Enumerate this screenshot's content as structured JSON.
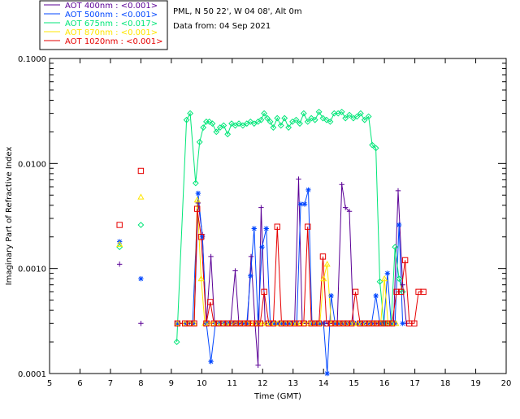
{
  "chart_data": {
    "type": "line",
    "yscale": "log",
    "ylabel": "Imaginary Part of Refractive Index",
    "xlabel": "Time (GMT)",
    "xlim": [
      5,
      20
    ],
    "ylim": [
      0.0001,
      0.1
    ],
    "x_ticks": [
      5,
      6,
      7,
      8,
      9,
      10,
      11,
      12,
      13,
      14,
      15,
      16,
      17,
      18,
      19,
      20
    ],
    "y_ticks": [
      {
        "value": 0.0001,
        "label": "0.0001"
      },
      {
        "value": 0.001,
        "label": "0.0010"
      },
      {
        "value": 0.01,
        "label": "0.0100"
      },
      {
        "value": 0.1,
        "label": "0.1000"
      }
    ],
    "site_info": "PML, N 50 22', W 04 08', Alt 0m",
    "data_date": "Data from: 04 Sep 2021",
    "legend_position": "top-left outside",
    "series": [
      {
        "name": "AOT 400nm",
        "legend_label": "AOT  400nm : <0.001>",
        "color": "#5a0096",
        "marker": "plus",
        "early_points": [
          [
            7.3,
            0.0011
          ],
          [
            8.0,
            0.0003
          ]
        ],
        "x": [
          9.2,
          9.45,
          9.6,
          9.75,
          9.88,
          10.02,
          10.15,
          10.3,
          10.42,
          10.55,
          10.7,
          10.82,
          10.95,
          11.1,
          11.22,
          11.35,
          11.5,
          11.62,
          11.75,
          11.85,
          11.95,
          12.08,
          12.2,
          12.3,
          12.42,
          12.55,
          12.68,
          12.8,
          12.92,
          13.05,
          13.18,
          13.3,
          13.45,
          13.6,
          13.75,
          13.88,
          14.02,
          14.15,
          14.3,
          14.45,
          14.6,
          14.72,
          14.85,
          14.98,
          15.1,
          15.22,
          15.35,
          15.48,
          15.62,
          15.75,
          15.88,
          16.02,
          16.15,
          16.3,
          16.45,
          16.6,
          16.72
        ],
        "y": [
          0.0003,
          0.0003,
          0.0003,
          0.0003,
          0.0042,
          0.0021,
          0.0003,
          0.0013,
          0.0003,
          0.0003,
          0.0003,
          0.0003,
          0.0003,
          0.00095,
          0.0003,
          0.0003,
          0.0003,
          0.0013,
          0.0003,
          0.00012,
          0.0038,
          0.0003,
          0.0003,
          0.0003,
          0.0003,
          0.0003,
          0.0003,
          0.0003,
          0.0003,
          0.0003,
          0.0071,
          0.0003,
          0.0003,
          0.0003,
          0.0003,
          0.0003,
          0.0003,
          0.0003,
          0.0003,
          0.0003,
          0.0063,
          0.0038,
          0.0035,
          0.0003,
          0.0003,
          0.0003,
          0.0003,
          0.0003,
          0.0003,
          0.0003,
          0.0003,
          0.0003,
          0.0003,
          0.0003,
          0.0055,
          0.0007,
          0.0003
        ]
      },
      {
        "name": "AOT 500nm",
        "legend_label": "AOT  500nm : <0.001>",
        "color": "#0046ff",
        "marker": "asterisk",
        "early_points": [
          [
            7.3,
            0.0018
          ],
          [
            8.0,
            0.0008
          ]
        ],
        "x": [
          9.2,
          9.5,
          9.7,
          9.88,
          10.02,
          10.15,
          10.3,
          10.45,
          10.6,
          10.75,
          10.9,
          11.05,
          11.2,
          11.35,
          11.48,
          11.6,
          11.72,
          11.85,
          11.98,
          12.12,
          12.25,
          12.38,
          12.5,
          12.62,
          12.75,
          12.88,
          13.0,
          13.12,
          13.25,
          13.38,
          13.5,
          13.62,
          13.75,
          13.88,
          14.0,
          14.12,
          14.25,
          14.38,
          14.52,
          14.65,
          14.78,
          14.92,
          15.05,
          15.18,
          15.3,
          15.45,
          15.58,
          15.72,
          15.85,
          15.98,
          16.1,
          16.22,
          16.35,
          16.48,
          16.6
        ],
        "y": [
          0.0003,
          0.0003,
          0.0003,
          0.0052,
          0.002,
          0.0003,
          0.00013,
          0.0003,
          0.0003,
          0.0003,
          0.0003,
          0.0003,
          0.0003,
          0.0003,
          0.0003,
          0.00085,
          0.0024,
          0.0003,
          0.0016,
          0.0024,
          0.0003,
          0.0003,
          0.0003,
          0.0003,
          0.0003,
          0.0003,
          0.0003,
          0.0003,
          0.0041,
          0.0041,
          0.0056,
          0.0003,
          0.0003,
          0.0003,
          0.0003,
          9e-05,
          0.00055,
          0.0003,
          0.0003,
          0.0003,
          0.0003,
          0.0003,
          0.0003,
          0.0003,
          0.0003,
          0.0003,
          0.0003,
          0.00055,
          0.0003,
          0.0003,
          0.0009,
          0.0003,
          0.0003,
          0.0026,
          0.0003
        ]
      },
      {
        "name": "AOT 675nm",
        "legend_label": "AOT  675nm : <0.017>",
        "color": "#00e678",
        "marker": "diamond",
        "early_points": [
          [
            7.3,
            0.0016
          ],
          [
            8.0,
            0.0026
          ]
        ],
        "x": [
          9.18,
          9.5,
          9.62,
          9.8,
          9.93,
          10.05,
          10.15,
          10.25,
          10.35,
          10.48,
          10.6,
          10.72,
          10.85,
          10.98,
          11.1,
          11.22,
          11.35,
          11.48,
          11.6,
          11.72,
          11.85,
          11.95,
          12.05,
          12.15,
          12.25,
          12.35,
          12.48,
          12.6,
          12.72,
          12.85,
          12.98,
          13.1,
          13.22,
          13.35,
          13.48,
          13.6,
          13.72,
          13.85,
          13.98,
          14.1,
          14.22,
          14.35,
          14.48,
          14.6,
          14.72,
          14.85,
          14.98,
          15.1,
          15.22,
          15.35,
          15.48,
          15.6,
          15.72,
          15.85,
          15.98,
          16.1,
          16.22,
          16.35,
          16.48,
          16.6
        ],
        "y": [
          0.0002,
          0.026,
          0.03,
          0.0065,
          0.016,
          0.022,
          0.025,
          0.025,
          0.024,
          0.02,
          0.022,
          0.023,
          0.019,
          0.024,
          0.023,
          0.024,
          0.023,
          0.024,
          0.025,
          0.024,
          0.025,
          0.026,
          0.03,
          0.027,
          0.025,
          0.022,
          0.027,
          0.023,
          0.027,
          0.022,
          0.025,
          0.026,
          0.024,
          0.03,
          0.025,
          0.027,
          0.026,
          0.031,
          0.027,
          0.026,
          0.025,
          0.03,
          0.03,
          0.031,
          0.027,
          0.029,
          0.027,
          0.028,
          0.03,
          0.026,
          0.028,
          0.015,
          0.014,
          0.00075,
          0.0003,
          0.0003,
          0.0003,
          0.0016,
          0.0008,
          0.0006
        ]
      },
      {
        "name": "AOT 870nm",
        "legend_label": "AOT  870nm : <0.001>",
        "color": "#ffe600",
        "marker": "triangle",
        "early_points": [
          [
            7.3,
            0.0017
          ],
          [
            8.0,
            0.0048
          ]
        ],
        "x": [
          9.2,
          9.45,
          9.6,
          9.75,
          9.85,
          9.98,
          10.1,
          10.25,
          10.38,
          10.5,
          10.65,
          10.8,
          10.95,
          11.1,
          11.25,
          11.38,
          11.5,
          11.62,
          11.75,
          11.88,
          12.0,
          12.12,
          12.25,
          12.38,
          12.5,
          12.62,
          12.75,
          12.88,
          13.0,
          13.12,
          13.25,
          13.38,
          13.5,
          13.62,
          13.75,
          13.88,
          14.0,
          14.12,
          14.25,
          14.38,
          14.5,
          14.62,
          14.75,
          14.88,
          15.0,
          15.12,
          15.25,
          15.38,
          15.5,
          15.62,
          15.75,
          15.88,
          16.0,
          16.12,
          16.25,
          16.38
        ],
        "y": [
          0.0003,
          0.0003,
          0.0003,
          0.0003,
          0.0045,
          0.0008,
          0.0003,
          0.0003,
          0.0003,
          0.0003,
          0.0003,
          0.0003,
          0.0003,
          0.0003,
          0.0003,
          0.0003,
          0.0003,
          0.0003,
          0.0003,
          0.0003,
          0.0003,
          0.0003,
          0.0003,
          0.0003,
          0.0003,
          0.0003,
          0.0003,
          0.0003,
          0.0003,
          0.0003,
          0.0003,
          0.0003,
          0.0003,
          0.0003,
          0.0003,
          0.0003,
          0.0008,
          0.0011,
          0.0003,
          0.0003,
          0.0003,
          0.0003,
          0.0003,
          0.0003,
          0.0003,
          0.0003,
          0.0003,
          0.0003,
          0.0003,
          0.0003,
          0.0003,
          0.0003,
          0.0008,
          0.0003,
          0.0003,
          0.0003
        ]
      },
      {
        "name": "AOT 1020nm",
        "legend_label": "AOT 1020nm : <0.001>",
        "color": "#e60000",
        "marker": "square",
        "early_points": [
          [
            7.3,
            0.0026
          ],
          [
            8.0,
            0.0085
          ]
        ],
        "x": [
          9.2,
          9.45,
          9.6,
          9.75,
          9.85,
          9.98,
          10.15,
          10.28,
          10.4,
          10.55,
          10.7,
          10.85,
          11.0,
          11.12,
          11.25,
          11.38,
          11.52,
          11.65,
          11.8,
          11.92,
          12.05,
          12.2,
          12.35,
          12.48,
          12.62,
          12.75,
          12.9,
          13.05,
          13.2,
          13.35,
          13.48,
          13.6,
          13.72,
          13.85,
          13.98,
          14.1,
          14.25,
          14.38,
          14.52,
          14.65,
          14.78,
          14.92,
          15.05,
          15.2,
          15.35,
          15.5,
          15.62,
          15.75,
          15.88,
          16.0,
          16.12,
          16.25,
          16.4,
          16.55,
          16.68,
          16.82,
          16.98,
          17.12,
          17.28
        ],
        "y": [
          0.0003,
          0.0003,
          0.0003,
          0.0003,
          0.0037,
          0.002,
          0.0003,
          0.00048,
          0.0003,
          0.0003,
          0.0003,
          0.0003,
          0.0003,
          0.0003,
          0.0003,
          0.0003,
          0.0003,
          0.0003,
          0.0003,
          0.0003,
          0.0006,
          0.0003,
          0.0003,
          0.0025,
          0.0003,
          0.0003,
          0.0003,
          0.0003,
          0.0003,
          0.0003,
          0.0025,
          0.0003,
          0.0003,
          0.0003,
          0.0013,
          0.0003,
          0.0003,
          0.0003,
          0.0003,
          0.0003,
          0.0003,
          0.0003,
          0.0006,
          0.0003,
          0.0003,
          0.0003,
          0.0003,
          0.0003,
          0.0003,
          0.0003,
          0.0003,
          0.0003,
          0.0006,
          0.0006,
          0.0012,
          0.0003,
          0.0003,
          0.0006,
          0.0006
        ]
      }
    ]
  }
}
